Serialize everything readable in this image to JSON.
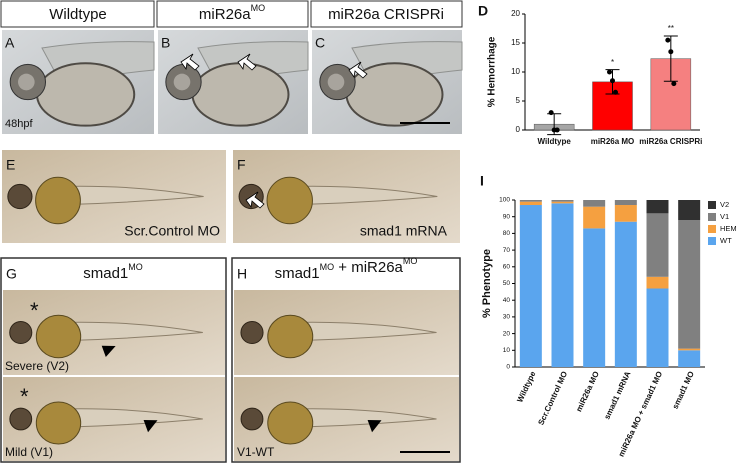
{
  "panels": {
    "A": {
      "label": "A",
      "header": "Wildtype",
      "note": "48hpf"
    },
    "B": {
      "label": "B",
      "header": {
        "base": "miR26a",
        "sup": "MO"
      }
    },
    "C": {
      "label": "C",
      "header": "miR26a CRISPRi"
    },
    "E": {
      "label": "E",
      "caption": "Scr.Control MO"
    },
    "F": {
      "label": "F",
      "caption": "smad1 mRNA"
    },
    "G": {
      "label": "G",
      "header": {
        "base": "smad1",
        "sup": "MO"
      },
      "top_caption": "Severe (V2)",
      "bottom_caption": "Mild (V1)",
      "marker": "*"
    },
    "H": {
      "label": "H",
      "header": [
        {
          "base": "smad1",
          "sup": "MO"
        },
        {
          "base": " + miR26a",
          "sup": "MO"
        }
      ],
      "caption": "V1-WT"
    }
  },
  "chart_data": [
    {
      "type": "bar",
      "panel_label": "D",
      "ylabel": "% Hemorrhage",
      "categories": [
        "Wildtype",
        "miR26a MO",
        "miR26a CRISPRi"
      ],
      "values": [
        1,
        8.3,
        12.3
      ],
      "errors": [
        1.8,
        2.1,
        3.9
      ],
      "points": [
        [
          3,
          0,
          0
        ],
        [
          10,
          8.5,
          6.5
        ],
        [
          15.5,
          13.5,
          8
        ]
      ],
      "significance": [
        null,
        "*",
        "**"
      ],
      "colors": [
        "#a6a6a6",
        "#ff0000",
        "#f58080"
      ],
      "ylim": [
        0,
        20
      ],
      "yticks": [
        0,
        5,
        10,
        15,
        20
      ]
    },
    {
      "type": "stacked_bar",
      "panel_label": "I",
      "ylabel": "% Phenotype",
      "categories": [
        "Wildtype",
        "Scr.Control MO",
        "miR26a MO",
        "smad1 mRNA",
        "miR26a MO + smad1 MO",
        "smad1 MO"
      ],
      "series": [
        {
          "name": "WT",
          "color": "#5aa5ee",
          "values": [
            97,
            98,
            83,
            87,
            47,
            10
          ]
        },
        {
          "name": "HEM",
          "color": "#f5a040",
          "values": [
            2,
            1,
            13,
            10,
            7,
            1
          ]
        },
        {
          "name": "V1",
          "color": "#808080",
          "values": [
            1,
            1,
            4,
            3,
            38,
            77
          ]
        },
        {
          "name": "V2",
          "color": "#303030",
          "values": [
            0,
            0,
            0,
            0,
            8,
            12
          ]
        }
      ],
      "ylim": [
        0,
        100
      ],
      "yticks": [
        0,
        10,
        20,
        30,
        40,
        50,
        60,
        70,
        80,
        90,
        100
      ],
      "legend": "top-right"
    }
  ]
}
